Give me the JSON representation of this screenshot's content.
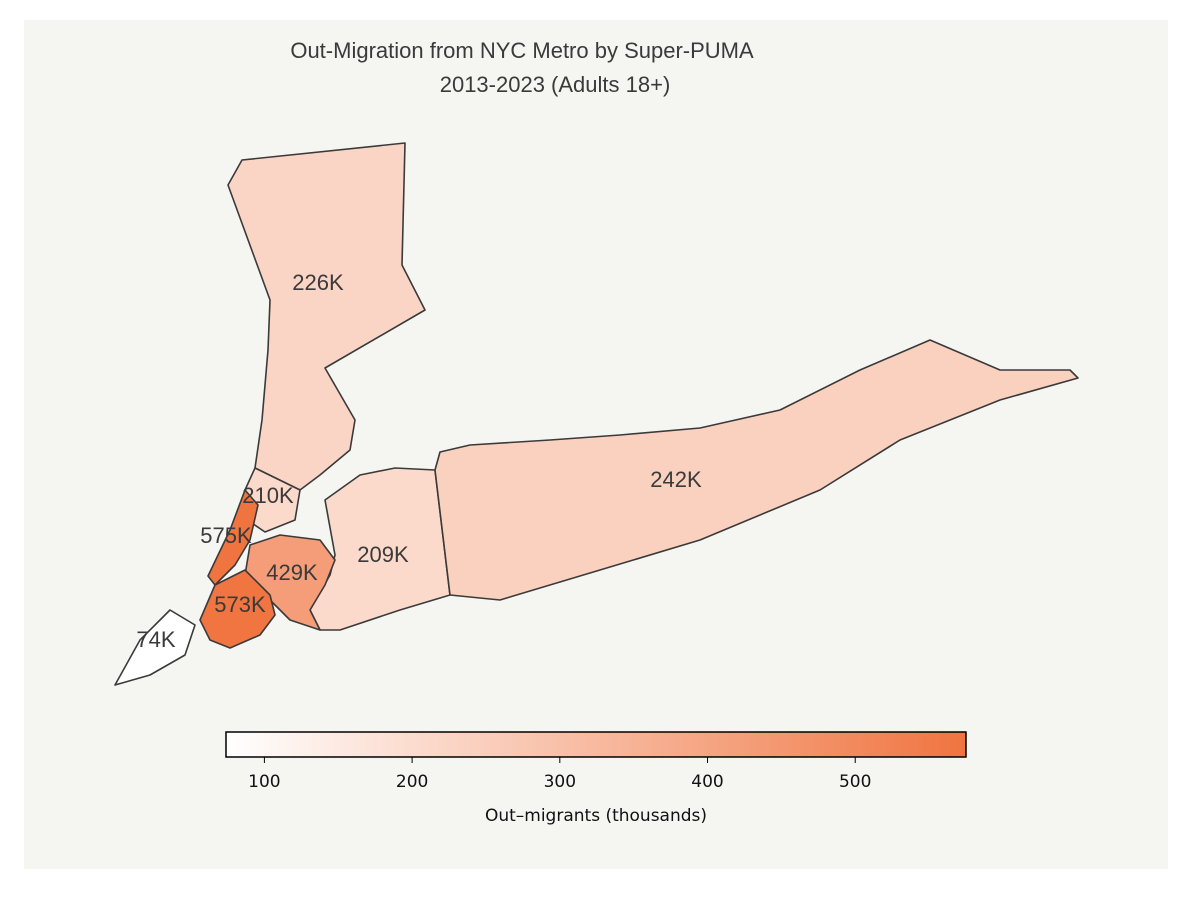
{
  "chart_data": {
    "type": "choropleth",
    "title": "Out-Migration from NYC Metro by Super-PUMA",
    "subtitle": "2013-2023 (Adults 18+)",
    "values": [
      226,
      210,
      575,
      429,
      209,
      242,
      573,
      74
    ],
    "value_labels": [
      "226K",
      "210K",
      "575K",
      "429K",
      "209K",
      "242K",
      "573K",
      "74K"
    ],
    "colorbar": {
      "lim": [
        74,
        575
      ],
      "ticks": [
        100,
        200,
        300,
        400,
        500
      ],
      "label": "Out–migrants (thousands)",
      "colors": [
        "#ffffff",
        "#f07440"
      ]
    }
  }
}
